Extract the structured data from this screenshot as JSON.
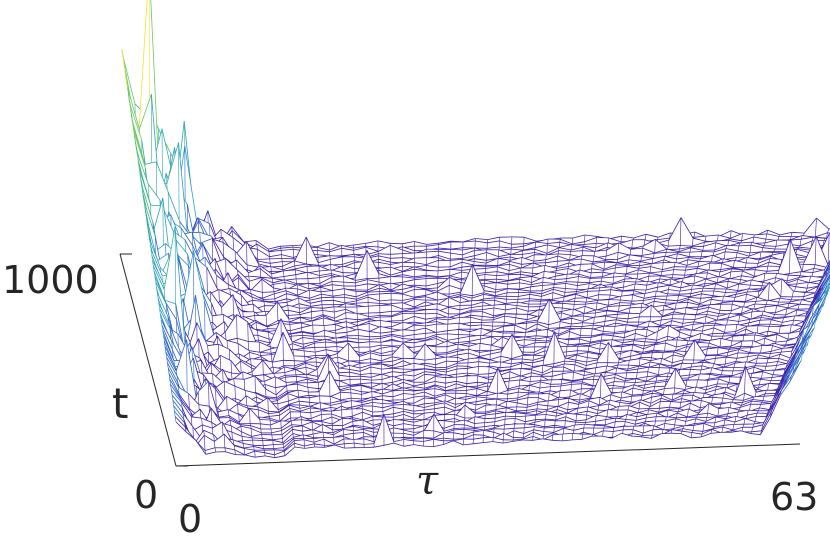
{
  "chart_data": {
    "type": "surface",
    "render": "wireframe-mesh",
    "title": "",
    "xlabel": "τ",
    "ylabel": "t",
    "zlabel": "",
    "x_ticks": [
      "0",
      "63"
    ],
    "y_ticks": [
      "0",
      "1000"
    ],
    "xlim": [
      0,
      63
    ],
    "ylim": [
      0,
      1000
    ],
    "grid": false,
    "legend": "none",
    "colormap": [
      "#3b1fa8",
      "#2c64c8",
      "#2ea0c0",
      "#39b887",
      "#6cc95c",
      "#f2e337"
    ],
    "description_of_surface": {
      "low_tau_peaks_range": [
        0,
        12
      ],
      "long_tail_level": "near-zero",
      "upturn_near_tau": 63
    }
  }
}
